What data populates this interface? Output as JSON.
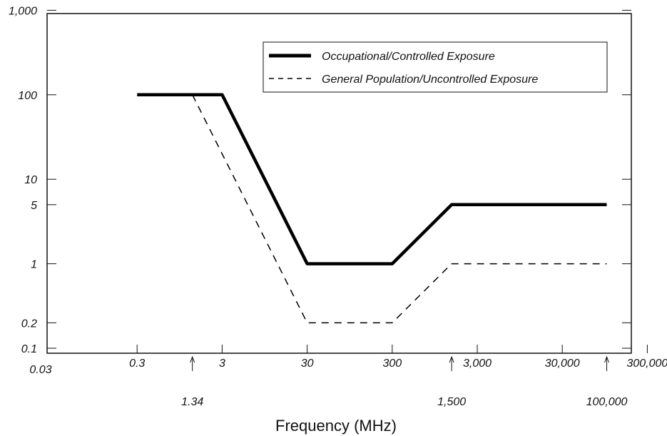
{
  "chart_data": {
    "type": "line",
    "title": "",
    "xlabel": "Frequency (MHz)",
    "ylabel": "",
    "x_scale": "log",
    "y_scale": "log",
    "xlim": [
      0.03,
      300000
    ],
    "ylim": [
      0.1,
      1000
    ],
    "grid": false,
    "legend_position": "top-right",
    "x_ticks": [
      {
        "value": 0.03,
        "label": "0.03"
      },
      {
        "value": 0.3,
        "label": "0.3"
      },
      {
        "value": 3,
        "label": "3"
      },
      {
        "value": 30,
        "label": "30"
      },
      {
        "value": 300,
        "label": "300"
      },
      {
        "value": 3000,
        "label": "3,000"
      },
      {
        "value": 30000,
        "label": "30,000"
      },
      {
        "value": 300000,
        "label": "300,000"
      }
    ],
    "x_annotations": [
      {
        "value": 1.34,
        "label": "1.34"
      },
      {
        "value": 1500,
        "label": "1,500"
      },
      {
        "value": 100000,
        "label": "100,000"
      }
    ],
    "y_ticks": [
      {
        "value": 0.1,
        "label": "0.1"
      },
      {
        "value": 0.2,
        "label": "0.2"
      },
      {
        "value": 1,
        "label": "1"
      },
      {
        "value": 5,
        "label": "5"
      },
      {
        "value": 10,
        "label": "10"
      },
      {
        "value": 100,
        "label": "100"
      },
      {
        "value": 1000,
        "label": "1,000"
      }
    ],
    "series": [
      {
        "name": "Occupational/Controlled Exposure",
        "style": "solid",
        "color": "#000000",
        "points": [
          [
            0.3,
            100
          ],
          [
            3,
            100
          ],
          [
            30,
            1
          ],
          [
            300,
            1
          ],
          [
            1500,
            5
          ],
          [
            100000,
            5
          ]
        ]
      },
      {
        "name": "General Population/Uncontrolled Exposure",
        "style": "dashed",
        "color": "#000000",
        "points": [
          [
            1.34,
            100
          ],
          [
            30,
            0.2
          ],
          [
            300,
            0.2
          ],
          [
            1500,
            1
          ],
          [
            100000,
            1
          ]
        ]
      }
    ]
  }
}
